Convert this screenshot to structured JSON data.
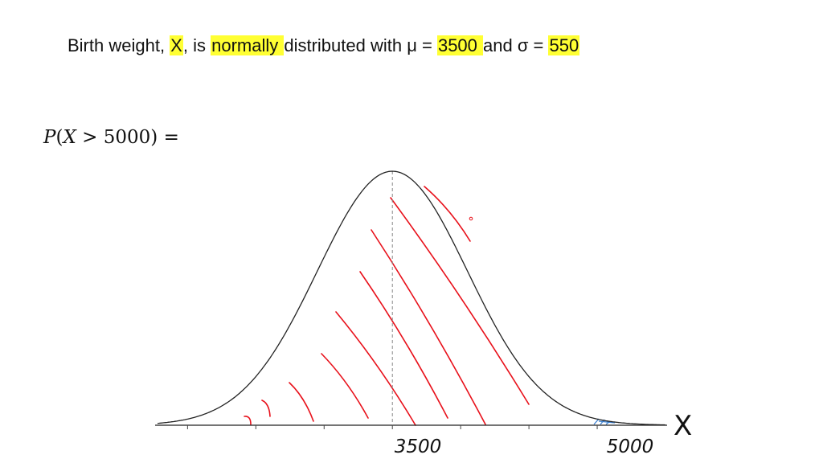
{
  "statement": {
    "prefix": "Birth weight, ",
    "var_x": "X",
    "after_x": ", is ",
    "normally": "normally ",
    "dist_text": "distributed with μ = ",
    "mu_value": "3500 ",
    "and_sigma": "and σ = ",
    "sigma_value": "550"
  },
  "expression": {
    "p": "P",
    "open": "(",
    "x": "X",
    "gt": " > ",
    "value": "5000",
    "close": ")",
    "eq": " ="
  },
  "axis": {
    "var_label": "X",
    "mean_label": "3500",
    "value_label": "5000"
  },
  "distribution": {
    "mean": 3500,
    "sd": 550,
    "x_min": 1780,
    "x_max": 5500
  },
  "colors": {
    "highlight": "#ffff33",
    "hatch": "#e8101a",
    "tail_shade": "#3a7fd0",
    "curve": "#222222",
    "ink": "#111111"
  }
}
